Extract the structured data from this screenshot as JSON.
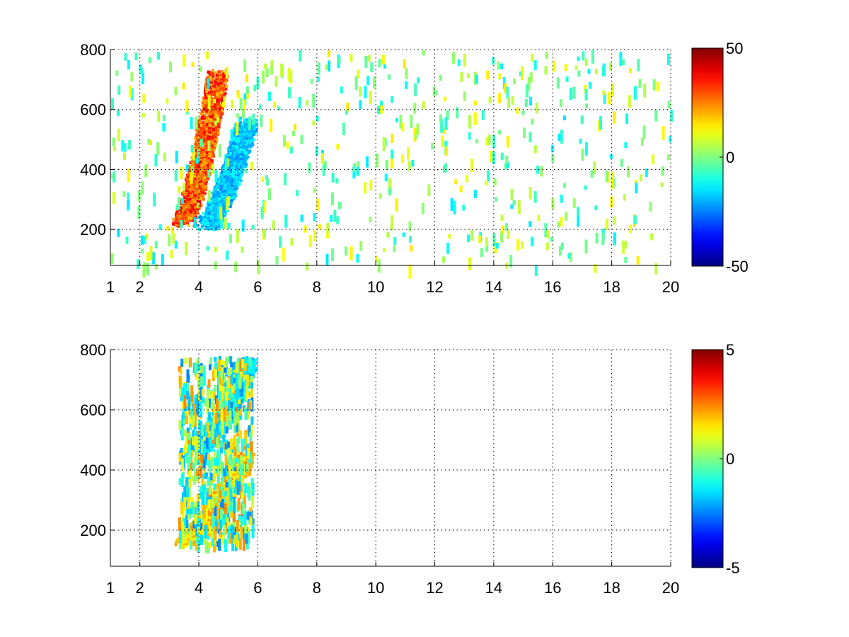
{
  "chart_data": [
    {
      "type": "heatmap",
      "title": "",
      "xlabel": "",
      "ylabel": "",
      "xlim": [
        1,
        20
      ],
      "ylim": [
        80,
        800
      ],
      "xticks": [
        1,
        2,
        4,
        6,
        8,
        10,
        12,
        14,
        16,
        18,
        20
      ],
      "yticks": [
        200,
        400,
        600,
        800
      ],
      "grid": true,
      "colormap": "jet",
      "clim": [
        -50,
        50
      ],
      "colorbar_ticks": [
        -50,
        0,
        50
      ],
      "features": [
        {
          "kind": "ridge",
          "x_start": 3.4,
          "x_end": 4.6,
          "y_start": 230,
          "y_end": 720,
          "value": 40
        },
        {
          "kind": "trough",
          "x_start": 4.2,
          "x_end": 5.6,
          "y_start": 220,
          "y_end": 560,
          "value": -25
        },
        {
          "kind": "scatter",
          "x_range": [
            1,
            20
          ],
          "y_range": [
            80,
            800
          ],
          "value_range": [
            -15,
            15
          ],
          "density": 0.35
        }
      ]
    },
    {
      "type": "heatmap",
      "title": "",
      "xlabel": "",
      "ylabel": "",
      "xlim": [
        1,
        20
      ],
      "ylim": [
        80,
        800
      ],
      "xticks": [
        1,
        2,
        4,
        6,
        8,
        10,
        12,
        14,
        16,
        18,
        20
      ],
      "yticks": [
        200,
        400,
        600,
        800
      ],
      "grid": true,
      "colormap": "jet",
      "clim": [
        -5,
        5
      ],
      "colorbar_ticks": [
        -5,
        0,
        5
      ],
      "features": [
        {
          "kind": "ridge",
          "x_start": 3.5,
          "x_end": 5.5,
          "y_start": 170,
          "y_end": 450,
          "value": 2.5
        },
        {
          "kind": "trough",
          "x_start": 4.0,
          "x_end": 5.6,
          "y_start": 480,
          "y_end": 760,
          "value": -2
        },
        {
          "kind": "scatter",
          "x_range": [
            3.3,
            5.8
          ],
          "y_range": [
            160,
            780
          ],
          "value_range": [
            -2.5,
            2.5
          ],
          "density": 0.5
        }
      ]
    }
  ]
}
